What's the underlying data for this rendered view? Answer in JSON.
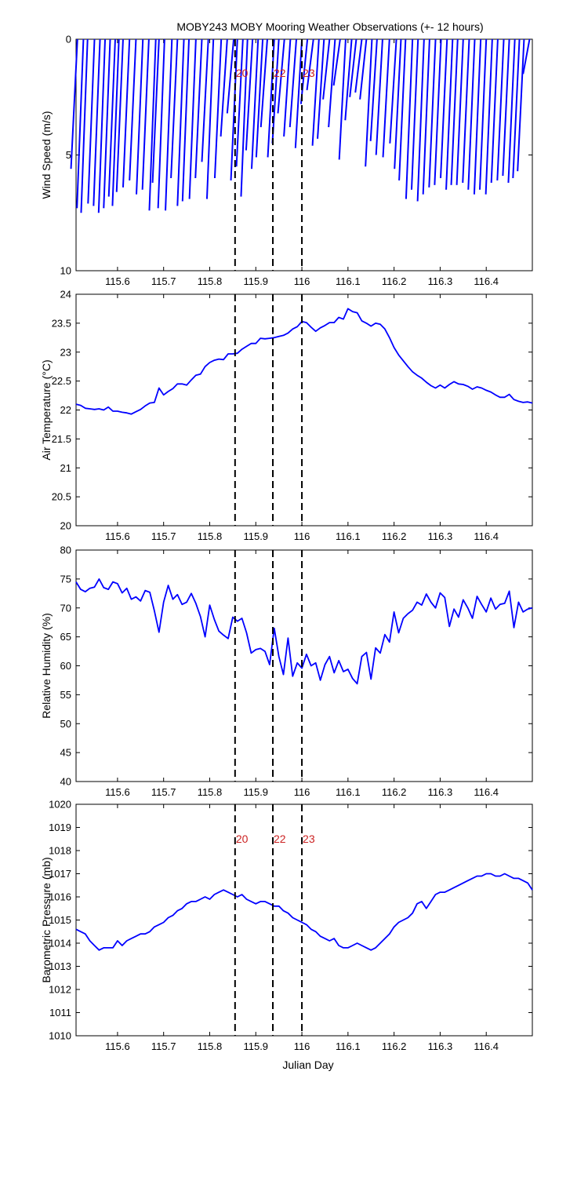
{
  "title": "MOBY243 MOBY Mooring Weather Observations (+- 12 hours)",
  "xlabel": "Julian Day",
  "colors": {
    "series": "#0000ff",
    "marker_text": "#cc2222",
    "axis": "#000000"
  },
  "chart_data": [
    {
      "id": "wind",
      "type": "line",
      "ylabel": "Wind Speed (m/s)",
      "xlim": [
        115.51,
        116.5
      ],
      "ylim": [
        0,
        10
      ],
      "y_reversed": true,
      "yticks": [
        0,
        5,
        10
      ],
      "xticks": [
        115.6,
        115.7,
        115.8,
        115.9,
        116,
        116.1,
        116.2,
        116.3,
        116.4
      ],
      "xtick_labels": [
        "115.6",
        "115.7",
        "115.8",
        "115.9",
        "116",
        "116.1",
        "116.2",
        "116.3",
        "116.4"
      ],
      "grid": false,
      "show_xtick_labels": true,
      "vertical_markers": [
        {
          "x": 115.855,
          "label": "20"
        },
        {
          "x": 115.937,
          "label": "22"
        },
        {
          "x": 116.0,
          "label": "23"
        }
      ],
      "stick_dx": 0.014,
      "sticks": [
        [
          115.513,
          5.6
        ],
        [
          115.526,
          7.3
        ],
        [
          115.535,
          7.5
        ],
        [
          115.55,
          7.1
        ],
        [
          115.562,
          7.2
        ],
        [
          115.573,
          7.5
        ],
        [
          115.584,
          7.3
        ],
        [
          115.595,
          6.8
        ],
        [
          115.603,
          7.2
        ],
        [
          115.612,
          6.6
        ],
        [
          115.626,
          6.4
        ],
        [
          115.64,
          6.1
        ],
        [
          115.655,
          6.7
        ],
        [
          115.668,
          6.5
        ],
        [
          115.683,
          7.4
        ],
        [
          115.69,
          6.2
        ],
        [
          115.702,
          7.3
        ],
        [
          115.718,
          7.4
        ],
        [
          115.73,
          6.0
        ],
        [
          115.744,
          7.2
        ],
        [
          115.755,
          7.0
        ],
        [
          115.77,
          6.9
        ],
        [
          115.783,
          6.0
        ],
        [
          115.797,
          5.3
        ],
        [
          115.808,
          6.9
        ],
        [
          115.825,
          6.0
        ],
        [
          115.838,
          4.2
        ],
        [
          115.852,
          3.2
        ],
        [
          115.86,
          6.1
        ],
        [
          115.872,
          5.5
        ],
        [
          115.882,
          6.8
        ],
        [
          115.893,
          4.8
        ],
        [
          115.905,
          5.6
        ],
        [
          115.915,
          5.1
        ],
        [
          115.925,
          3.8
        ],
        [
          115.94,
          5.1
        ],
        [
          115.95,
          4.5
        ],
        [
          115.962,
          3.2
        ],
        [
          115.975,
          4.2
        ],
        [
          115.988,
          3.8
        ],
        [
          116.0,
          4.7
        ],
        [
          116.012,
          2.8
        ],
        [
          116.025,
          2.2
        ],
        [
          116.037,
          4.6
        ],
        [
          116.048,
          4.3
        ],
        [
          116.06,
          2.6
        ],
        [
          116.072,
          3.8
        ],
        [
          116.083,
          2.0
        ],
        [
          116.095,
          5.2
        ],
        [
          116.108,
          3.5
        ],
        [
          116.118,
          2.5
        ],
        [
          116.13,
          2.3
        ],
        [
          116.14,
          2.6
        ],
        [
          116.152,
          5.5
        ],
        [
          116.163,
          4.4
        ],
        [
          116.175,
          5.0
        ],
        [
          116.19,
          5.1
        ],
        [
          116.205,
          4.5
        ],
        [
          116.215,
          5.6
        ],
        [
          116.225,
          6.1
        ],
        [
          116.24,
          6.9
        ],
        [
          116.252,
          6.5
        ],
        [
          116.265,
          7.0
        ],
        [
          116.277,
          6.7
        ],
        [
          116.29,
          6.4
        ],
        [
          116.302,
          6.3
        ],
        [
          116.315,
          6.0
        ],
        [
          116.327,
          6.5
        ],
        [
          116.338,
          6.3
        ],
        [
          116.35,
          6.3
        ],
        [
          116.363,
          6.2
        ],
        [
          116.375,
          6.5
        ],
        [
          116.388,
          6.7
        ],
        [
          116.4,
          6.5
        ],
        [
          116.413,
          6.7
        ],
        [
          116.425,
          6.2
        ],
        [
          116.438,
          6.1
        ],
        [
          116.45,
          5.9
        ],
        [
          116.462,
          6.2
        ],
        [
          116.472,
          6.0
        ],
        [
          116.482,
          5.7
        ],
        [
          116.494,
          1.5
        ]
      ]
    },
    {
      "id": "airtemp",
      "type": "line",
      "ylabel": "Air Temperature (°C)",
      "xlim": [
        115.51,
        116.5
      ],
      "ylim": [
        20,
        24
      ],
      "yticks": [
        20,
        20.5,
        21,
        21.5,
        22,
        22.5,
        23,
        23.5,
        24
      ],
      "ytick_labels": [
        "20",
        "20.5",
        "21",
        "21.5",
        "22",
        "22.5",
        "23",
        "23.5",
        "24"
      ],
      "xticks": [
        115.6,
        115.7,
        115.8,
        115.9,
        116,
        116.1,
        116.2,
        116.3,
        116.4
      ],
      "xtick_labels": [
        "115.6",
        "115.7",
        "115.8",
        "115.9",
        "116",
        "116.1",
        "116.2",
        "116.3",
        "116.4"
      ],
      "grid": false,
      "vertical_markers": [
        {
          "x": 115.855,
          "label": ""
        },
        {
          "x": 115.937,
          "label": ""
        },
        {
          "x": 116.0,
          "label": ""
        }
      ],
      "x": [
        115.51,
        115.52,
        115.53,
        115.54,
        115.55,
        115.56,
        115.57,
        115.58,
        115.59,
        115.6,
        115.61,
        115.62,
        115.63,
        115.64,
        115.65,
        115.66,
        115.67,
        115.68,
        115.69,
        115.7,
        115.71,
        115.72,
        115.73,
        115.74,
        115.75,
        115.76,
        115.77,
        115.78,
        115.79,
        115.8,
        115.81,
        115.82,
        115.83,
        115.84,
        115.85,
        115.86,
        115.87,
        115.88,
        115.89,
        115.9,
        115.91,
        115.92,
        115.93,
        115.94,
        115.95,
        115.96,
        115.97,
        115.98,
        115.99,
        116.0,
        116.01,
        116.02,
        116.03,
        116.04,
        116.05,
        116.06,
        116.07,
        116.08,
        116.09,
        116.1,
        116.11,
        116.12,
        116.13,
        116.14,
        116.15,
        116.16,
        116.17,
        116.18,
        116.19,
        116.2,
        116.21,
        116.22,
        116.23,
        116.24,
        116.25,
        116.26,
        116.27,
        116.28,
        116.29,
        116.3,
        116.31,
        116.32,
        116.33,
        116.34,
        116.35,
        116.36,
        116.37,
        116.38,
        116.39,
        116.4,
        116.41,
        116.42,
        116.43,
        116.44,
        116.45,
        116.46,
        116.47,
        116.48,
        116.49,
        116.5
      ],
      "y": [
        22.1,
        22.08,
        22.03,
        22.02,
        22.01,
        22.02,
        22.0,
        22.05,
        21.98,
        21.98,
        21.96,
        21.95,
        21.93,
        21.97,
        22.01,
        22.07,
        22.12,
        22.13,
        22.38,
        22.26,
        22.32,
        22.37,
        22.45,
        22.45,
        22.43,
        22.52,
        22.6,
        22.62,
        22.75,
        22.82,
        22.86,
        22.88,
        22.87,
        22.97,
        22.97,
        22.98,
        23.05,
        23.1,
        23.15,
        23.15,
        23.24,
        23.23,
        23.24,
        23.25,
        23.27,
        23.29,
        23.33,
        23.4,
        23.44,
        23.53,
        23.51,
        23.43,
        23.36,
        23.42,
        23.46,
        23.51,
        23.51,
        23.6,
        23.57,
        23.75,
        23.7,
        23.68,
        23.54,
        23.5,
        23.45,
        23.5,
        23.48,
        23.4,
        23.25,
        23.08,
        22.95,
        22.85,
        22.75,
        22.66,
        22.6,
        22.55,
        22.48,
        22.42,
        22.38,
        22.43,
        22.38,
        22.44,
        22.49,
        22.45,
        22.44,
        22.41,
        22.36,
        22.4,
        22.38,
        22.34,
        22.31,
        22.26,
        22.22,
        22.22,
        22.27,
        22.18,
        22.15,
        22.13,
        22.14,
        22.12
      ]
    },
    {
      "id": "humidity",
      "type": "line",
      "ylabel": "Relative Humidity (%)",
      "xlim": [
        115.51,
        116.5
      ],
      "ylim": [
        40,
        80
      ],
      "yticks": [
        40,
        45,
        50,
        55,
        60,
        65,
        70,
        75,
        80
      ],
      "xticks": [
        115.6,
        115.7,
        115.8,
        115.9,
        116,
        116.1,
        116.2,
        116.3,
        116.4
      ],
      "xtick_labels": [
        "115.6",
        "115.7",
        "115.8",
        "115.9",
        "116",
        "116.1",
        "116.2",
        "116.3",
        "116.4"
      ],
      "grid": false,
      "vertical_markers": [
        {
          "x": 115.855,
          "label": ""
        },
        {
          "x": 115.937,
          "label": ""
        },
        {
          "x": 116.0,
          "label": ""
        }
      ],
      "x": [
        115.51,
        115.52,
        115.53,
        115.54,
        115.55,
        115.56,
        115.57,
        115.58,
        115.59,
        115.6,
        115.61,
        115.62,
        115.63,
        115.64,
        115.65,
        115.66,
        115.67,
        115.68,
        115.69,
        115.7,
        115.71,
        115.72,
        115.73,
        115.74,
        115.75,
        115.76,
        115.77,
        115.78,
        115.79,
        115.8,
        115.81,
        115.82,
        115.83,
        115.84,
        115.85,
        115.86,
        115.87,
        115.88,
        115.89,
        115.9,
        115.91,
        115.92,
        115.93,
        115.94,
        115.95,
        115.96,
        115.97,
        115.98,
        115.99,
        116.0,
        116.01,
        116.02,
        116.03,
        116.04,
        116.05,
        116.06,
        116.07,
        116.08,
        116.09,
        116.1,
        116.11,
        116.12,
        116.13,
        116.14,
        116.15,
        116.16,
        116.17,
        116.18,
        116.19,
        116.2,
        116.21,
        116.22,
        116.23,
        116.24,
        116.25,
        116.26,
        116.27,
        116.28,
        116.29,
        116.3,
        116.31,
        116.32,
        116.33,
        116.34,
        116.35,
        116.36,
        116.37,
        116.38,
        116.39,
        116.4,
        116.41,
        116.42,
        116.43,
        116.44,
        116.45,
        116.46,
        116.47,
        116.48,
        116.49,
        116.5
      ],
      "y": [
        74.5,
        73.2,
        72.8,
        73.4,
        73.6,
        75.0,
        73.5,
        73.2,
        74.5,
        74.2,
        72.6,
        73.4,
        71.5,
        71.9,
        71.2,
        73.0,
        72.7,
        69.5,
        65.8,
        71.0,
        73.9,
        71.5,
        72.3,
        70.6,
        71.0,
        72.5,
        70.8,
        68.5,
        65.0,
        70.5,
        68.0,
        66.0,
        65.3,
        64.7,
        68.4,
        67.7,
        68.2,
        65.7,
        62.2,
        62.8,
        63.0,
        62.5,
        60.2,
        66.5,
        61.6,
        58.5,
        64.8,
        58.2,
        60.5,
        59.6,
        62.0,
        60.0,
        60.5,
        57.5,
        60.2,
        61.6,
        58.8,
        60.9,
        59.0,
        59.4,
        57.8,
        56.9,
        61.6,
        62.3,
        57.7,
        63.1,
        62.2,
        65.4,
        64.1,
        69.3,
        65.7,
        68.2,
        69.0,
        69.6,
        71.0,
        70.5,
        72.4,
        71.0,
        70.0,
        72.6,
        71.8,
        66.8,
        69.8,
        68.4,
        71.4,
        70.0,
        68.2,
        72.0,
        70.6,
        69.3,
        71.7,
        69.8,
        70.6,
        70.8,
        72.9,
        66.6,
        71.0,
        69.3,
        69.8,
        70.0
      ]
    },
    {
      "id": "pressure",
      "type": "line",
      "ylabel": "Barometric Pressure (mb)",
      "xlabel": "Julian Day",
      "xlim": [
        115.51,
        116.5
      ],
      "ylim": [
        1010,
        1020
      ],
      "yticks": [
        1010,
        1011,
        1012,
        1013,
        1014,
        1015,
        1016,
        1017,
        1018,
        1019,
        1020
      ],
      "xticks": [
        115.6,
        115.7,
        115.8,
        115.9,
        116,
        116.1,
        116.2,
        116.3,
        116.4
      ],
      "xtick_labels": [
        "115.6",
        "115.7",
        "115.8",
        "115.9",
        "116",
        "116.1",
        "116.2",
        "116.3",
        "116.4"
      ],
      "grid": false,
      "vertical_markers": [
        {
          "x": 115.855,
          "label": "20"
        },
        {
          "x": 115.937,
          "label": "22"
        },
        {
          "x": 116.0,
          "label": "23"
        }
      ],
      "x": [
        115.51,
        115.52,
        115.53,
        115.54,
        115.55,
        115.56,
        115.57,
        115.58,
        115.59,
        115.6,
        115.61,
        115.62,
        115.63,
        115.64,
        115.65,
        115.66,
        115.67,
        115.68,
        115.69,
        115.7,
        115.71,
        115.72,
        115.73,
        115.74,
        115.75,
        115.76,
        115.77,
        115.78,
        115.79,
        115.8,
        115.81,
        115.82,
        115.83,
        115.84,
        115.85,
        115.86,
        115.87,
        115.88,
        115.89,
        115.9,
        115.91,
        115.92,
        115.93,
        115.94,
        115.95,
        115.96,
        115.97,
        115.98,
        115.99,
        116.0,
        116.01,
        116.02,
        116.03,
        116.04,
        116.05,
        116.06,
        116.07,
        116.08,
        116.09,
        116.1,
        116.11,
        116.12,
        116.13,
        116.14,
        116.15,
        116.16,
        116.17,
        116.18,
        116.19,
        116.2,
        116.21,
        116.22,
        116.23,
        116.24,
        116.25,
        116.26,
        116.27,
        116.28,
        116.29,
        116.3,
        116.31,
        116.32,
        116.33,
        116.34,
        116.35,
        116.36,
        116.37,
        116.38,
        116.39,
        116.4,
        116.41,
        116.42,
        116.43,
        116.44,
        116.45,
        116.46,
        116.47,
        116.48,
        116.49,
        116.5
      ],
      "y": [
        1014.6,
        1014.5,
        1014.4,
        1014.1,
        1013.9,
        1013.7,
        1013.8,
        1013.8,
        1013.8,
        1014.1,
        1013.9,
        1014.1,
        1014.2,
        1014.3,
        1014.4,
        1014.4,
        1014.5,
        1014.7,
        1014.8,
        1014.9,
        1015.1,
        1015.2,
        1015.4,
        1015.5,
        1015.7,
        1015.8,
        1015.8,
        1015.9,
        1016.0,
        1015.9,
        1016.1,
        1016.2,
        1016.3,
        1016.2,
        1016.1,
        1016.0,
        1016.1,
        1015.9,
        1015.8,
        1015.7,
        1015.8,
        1015.8,
        1015.7,
        1015.6,
        1015.6,
        1015.4,
        1015.3,
        1015.1,
        1015.0,
        1014.9,
        1014.8,
        1014.6,
        1014.5,
        1014.3,
        1014.2,
        1014.1,
        1014.2,
        1013.9,
        1013.8,
        1013.8,
        1013.9,
        1014.0,
        1013.9,
        1013.8,
        1013.7,
        1013.8,
        1014.0,
        1014.2,
        1014.4,
        1014.7,
        1014.9,
        1015.0,
        1015.1,
        1015.3,
        1015.7,
        1015.8,
        1015.5,
        1015.8,
        1016.1,
        1016.2,
        1016.2,
        1016.3,
        1016.4,
        1016.5,
        1016.6,
        1016.7,
        1016.8,
        1016.9,
        1016.9,
        1017.0,
        1017.0,
        1016.9,
        1016.9,
        1017.0,
        1016.9,
        1016.8,
        1016.8,
        1016.7,
        1016.6,
        1016.3
      ]
    }
  ]
}
